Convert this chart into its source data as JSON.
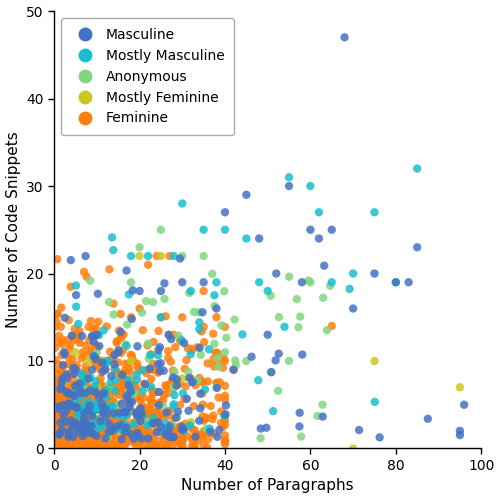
{
  "xlabel": "Number of Paragraphs",
  "ylabel": "Number of Code Snippets",
  "xlim": [
    0,
    100
  ],
  "ylim": [
    0,
    50
  ],
  "xticks": [
    0,
    20,
    40,
    60,
    80,
    100
  ],
  "yticks": [
    0,
    10,
    20,
    30,
    40,
    50
  ],
  "categories": [
    {
      "label": "Masculine",
      "color": "#4472C4",
      "zorder": 4
    },
    {
      "label": "Mostly Masculine",
      "color": "#17BECF",
      "zorder": 3
    },
    {
      "label": "Anonymous",
      "color": "#7FD87F",
      "zorder": 2
    },
    {
      "label": "Mostly Feminine",
      "color": "#C8C820",
      "zorder": 2
    },
    {
      "label": "Feminine",
      "color": "#FF7F0E",
      "zorder": 1
    }
  ],
  "markersize": 6,
  "alpha": 0.85,
  "figsize": [
    5.0,
    4.99
  ],
  "dpi": 100,
  "background_color": "#FFFFFF",
  "legend_loc": "upper left",
  "seed": 42
}
